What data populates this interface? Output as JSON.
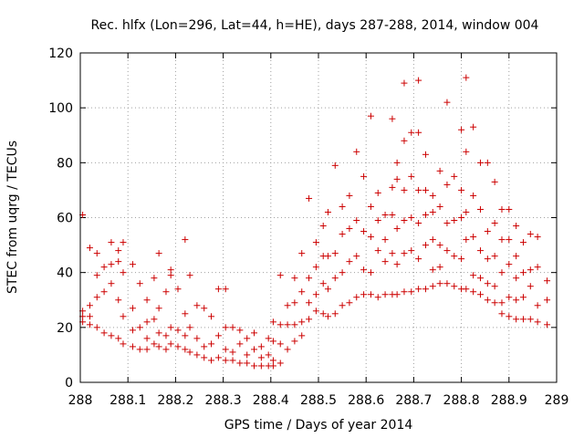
{
  "chart_data": {
    "type": "scatter",
    "title": "Rec. hlfx (Lon=296, Lat=44, h=HE), days 287-288, 2014, window 004",
    "xlabel": "GPS time / Days of year 2014",
    "ylabel": "STEC from uqrg / TECUs",
    "xlim": [
      288,
      289
    ],
    "ylim": [
      0,
      120
    ],
    "xticks": [
      "288",
      "288.1",
      "288.2",
      "288.3",
      "288.4",
      "288.5",
      "288.6",
      "288.7",
      "288.8",
      "288.9",
      "289"
    ],
    "yticks": [
      "0",
      "20",
      "40",
      "60",
      "80",
      "100",
      "120"
    ],
    "grid": true,
    "legend": "none",
    "marker": "plus",
    "series_color": "#cc0000",
    "points": [
      [
        288.005,
        61
      ],
      [
        288.005,
        26
      ],
      [
        288.005,
        24
      ],
      [
        288.005,
        22
      ],
      [
        288.02,
        49
      ],
      [
        288.02,
        28
      ],
      [
        288.02,
        24
      ],
      [
        288.02,
        21
      ],
      [
        288.035,
        47
      ],
      [
        288.035,
        39
      ],
      [
        288.035,
        31
      ],
      [
        288.035,
        20
      ],
      [
        288.05,
        42
      ],
      [
        288.05,
        33
      ],
      [
        288.05,
        18
      ],
      [
        288.065,
        51
      ],
      [
        288.065,
        43
      ],
      [
        288.065,
        36
      ],
      [
        288.065,
        17
      ],
      [
        288.08,
        48
      ],
      [
        288.08,
        44
      ],
      [
        288.08,
        30
      ],
      [
        288.08,
        16
      ],
      [
        288.09,
        51
      ],
      [
        288.09,
        40
      ],
      [
        288.09,
        24
      ],
      [
        288.09,
        14
      ],
      [
        288.11,
        43
      ],
      [
        288.11,
        27
      ],
      [
        288.11,
        19
      ],
      [
        288.11,
        13
      ],
      [
        288.125,
        36
      ],
      [
        288.125,
        20
      ],
      [
        288.125,
        12
      ],
      [
        288.14,
        30
      ],
      [
        288.14,
        22
      ],
      [
        288.14,
        16
      ],
      [
        288.14,
        12
      ],
      [
        288.155,
        38
      ],
      [
        288.155,
        23
      ],
      [
        288.155,
        14
      ],
      [
        288.165,
        47
      ],
      [
        288.165,
        27
      ],
      [
        288.165,
        18
      ],
      [
        288.165,
        13
      ],
      [
        288.18,
        33
      ],
      [
        288.18,
        17
      ],
      [
        288.18,
        12
      ],
      [
        288.19,
        41
      ],
      [
        288.19,
        39
      ],
      [
        288.19,
        20
      ],
      [
        288.19,
        14
      ],
      [
        288.205,
        34
      ],
      [
        288.205,
        19
      ],
      [
        288.205,
        13
      ],
      [
        288.22,
        52
      ],
      [
        288.22,
        25
      ],
      [
        288.22,
        17
      ],
      [
        288.22,
        12
      ],
      [
        288.23,
        39
      ],
      [
        288.23,
        20
      ],
      [
        288.23,
        11
      ],
      [
        288.245,
        28
      ],
      [
        288.245,
        16
      ],
      [
        288.245,
        10
      ],
      [
        288.26,
        27
      ],
      [
        288.26,
        13
      ],
      [
        288.26,
        9
      ],
      [
        288.275,
        24
      ],
      [
        288.275,
        14
      ],
      [
        288.275,
        8
      ],
      [
        288.29,
        34
      ],
      [
        288.29,
        17
      ],
      [
        288.29,
        9
      ],
      [
        288.305,
        34
      ],
      [
        288.305,
        20
      ],
      [
        288.305,
        12
      ],
      [
        288.305,
        8
      ],
      [
        288.32,
        20
      ],
      [
        288.32,
        11
      ],
      [
        288.32,
        8
      ],
      [
        288.335,
        19
      ],
      [
        288.335,
        14
      ],
      [
        288.335,
        7
      ],
      [
        288.35,
        16
      ],
      [
        288.35,
        10
      ],
      [
        288.35,
        7
      ],
      [
        288.365,
        18
      ],
      [
        288.365,
        12
      ],
      [
        288.365,
        6
      ],
      [
        288.38,
        13
      ],
      [
        288.38,
        9
      ],
      [
        288.38,
        6
      ],
      [
        288.395,
        16
      ],
      [
        288.395,
        10
      ],
      [
        288.395,
        6
      ],
      [
        288.405,
        22
      ],
      [
        288.405,
        15
      ],
      [
        288.405,
        8
      ],
      [
        288.405,
        6
      ],
      [
        288.42,
        39
      ],
      [
        288.42,
        21
      ],
      [
        288.42,
        14
      ],
      [
        288.42,
        7
      ],
      [
        288.435,
        28
      ],
      [
        288.435,
        21
      ],
      [
        288.435,
        12
      ],
      [
        288.45,
        38
      ],
      [
        288.45,
        29
      ],
      [
        288.45,
        21
      ],
      [
        288.45,
        15
      ],
      [
        288.465,
        47
      ],
      [
        288.465,
        33
      ],
      [
        288.465,
        22
      ],
      [
        288.465,
        17
      ],
      [
        288.48,
        67
      ],
      [
        288.48,
        38
      ],
      [
        288.48,
        29
      ],
      [
        288.48,
        23
      ],
      [
        288.495,
        51
      ],
      [
        288.495,
        42
      ],
      [
        288.495,
        32
      ],
      [
        288.495,
        26
      ],
      [
        288.51,
        57
      ],
      [
        288.51,
        46
      ],
      [
        288.51,
        36
      ],
      [
        288.51,
        25
      ],
      [
        288.52,
        62
      ],
      [
        288.52,
        46
      ],
      [
        288.52,
        34
      ],
      [
        288.52,
        24
      ],
      [
        288.535,
        79
      ],
      [
        288.535,
        47
      ],
      [
        288.535,
        38
      ],
      [
        288.535,
        25
      ],
      [
        288.55,
        64
      ],
      [
        288.55,
        54
      ],
      [
        288.55,
        40
      ],
      [
        288.55,
        28
      ],
      [
        288.565,
        68
      ],
      [
        288.565,
        56
      ],
      [
        288.565,
        44
      ],
      [
        288.565,
        29
      ],
      [
        288.58,
        84
      ],
      [
        288.58,
        59
      ],
      [
        288.58,
        46
      ],
      [
        288.58,
        31
      ],
      [
        288.595,
        75
      ],
      [
        288.595,
        55
      ],
      [
        288.595,
        41
      ],
      [
        288.595,
        32
      ],
      [
        288.61,
        97
      ],
      [
        288.61,
        64
      ],
      [
        288.61,
        53
      ],
      [
        288.61,
        40
      ],
      [
        288.61,
        32
      ],
      [
        288.625,
        69
      ],
      [
        288.625,
        59
      ],
      [
        288.625,
        48
      ],
      [
        288.625,
        31
      ],
      [
        288.64,
        61
      ],
      [
        288.64,
        52
      ],
      [
        288.64,
        44
      ],
      [
        288.64,
        32
      ],
      [
        288.655,
        96
      ],
      [
        288.655,
        71
      ],
      [
        288.655,
        61
      ],
      [
        288.655,
        47
      ],
      [
        288.655,
        32
      ],
      [
        288.665,
        80
      ],
      [
        288.665,
        74
      ],
      [
        288.665,
        56
      ],
      [
        288.665,
        43
      ],
      [
        288.665,
        32
      ],
      [
        288.68,
        109
      ],
      [
        288.68,
        88
      ],
      [
        288.68,
        70
      ],
      [
        288.68,
        59
      ],
      [
        288.68,
        47
      ],
      [
        288.68,
        33
      ],
      [
        288.695,
        91
      ],
      [
        288.695,
        75
      ],
      [
        288.695,
        60
      ],
      [
        288.695,
        48
      ],
      [
        288.695,
        33
      ],
      [
        288.71,
        110
      ],
      [
        288.71,
        91
      ],
      [
        288.71,
        70
      ],
      [
        288.71,
        58
      ],
      [
        288.71,
        45
      ],
      [
        288.71,
        34
      ],
      [
        288.725,
        83
      ],
      [
        288.725,
        70
      ],
      [
        288.725,
        61
      ],
      [
        288.725,
        50
      ],
      [
        288.725,
        34
      ],
      [
        288.74,
        68
      ],
      [
        288.74,
        62
      ],
      [
        288.74,
        52
      ],
      [
        288.74,
        41
      ],
      [
        288.74,
        35
      ],
      [
        288.755,
        77
      ],
      [
        288.755,
        64
      ],
      [
        288.755,
        50
      ],
      [
        288.755,
        42
      ],
      [
        288.755,
        36
      ],
      [
        288.77,
        102
      ],
      [
        288.77,
        72
      ],
      [
        288.77,
        58
      ],
      [
        288.77,
        48
      ],
      [
        288.77,
        36
      ],
      [
        288.785,
        75
      ],
      [
        288.785,
        59
      ],
      [
        288.785,
        46
      ],
      [
        288.785,
        35
      ],
      [
        288.8,
        92
      ],
      [
        288.8,
        70
      ],
      [
        288.8,
        60
      ],
      [
        288.8,
        45
      ],
      [
        288.8,
        34
      ],
      [
        288.81,
        111
      ],
      [
        288.81,
        84
      ],
      [
        288.81,
        62
      ],
      [
        288.81,
        52
      ],
      [
        288.81,
        34
      ],
      [
        288.825,
        93
      ],
      [
        288.825,
        68
      ],
      [
        288.825,
        53
      ],
      [
        288.825,
        39
      ],
      [
        288.825,
        33
      ],
      [
        288.84,
        80
      ],
      [
        288.84,
        63
      ],
      [
        288.84,
        48
      ],
      [
        288.84,
        38
      ],
      [
        288.84,
        32
      ],
      [
        288.855,
        80
      ],
      [
        288.855,
        55
      ],
      [
        288.855,
        45
      ],
      [
        288.855,
        36
      ],
      [
        288.855,
        30
      ],
      [
        288.87,
        73
      ],
      [
        288.87,
        58
      ],
      [
        288.87,
        46
      ],
      [
        288.87,
        35
      ],
      [
        288.87,
        29
      ],
      [
        288.885,
        63
      ],
      [
        288.885,
        52
      ],
      [
        288.885,
        40
      ],
      [
        288.885,
        29
      ],
      [
        288.885,
        25
      ],
      [
        288.9,
        63
      ],
      [
        288.9,
        52
      ],
      [
        288.9,
        43
      ],
      [
        288.9,
        31
      ],
      [
        288.9,
        24
      ],
      [
        288.915,
        57
      ],
      [
        288.915,
        46
      ],
      [
        288.915,
        38
      ],
      [
        288.915,
        30
      ],
      [
        288.915,
        23
      ],
      [
        288.93,
        51
      ],
      [
        288.93,
        40
      ],
      [
        288.93,
        31
      ],
      [
        288.93,
        23
      ],
      [
        288.945,
        54
      ],
      [
        288.945,
        41
      ],
      [
        288.945,
        35
      ],
      [
        288.945,
        23
      ],
      [
        288.96,
        53
      ],
      [
        288.96,
        42
      ],
      [
        288.96,
        28
      ],
      [
        288.96,
        22
      ],
      [
        288.98,
        37
      ],
      [
        288.98,
        30
      ],
      [
        288.98,
        21
      ]
    ]
  }
}
